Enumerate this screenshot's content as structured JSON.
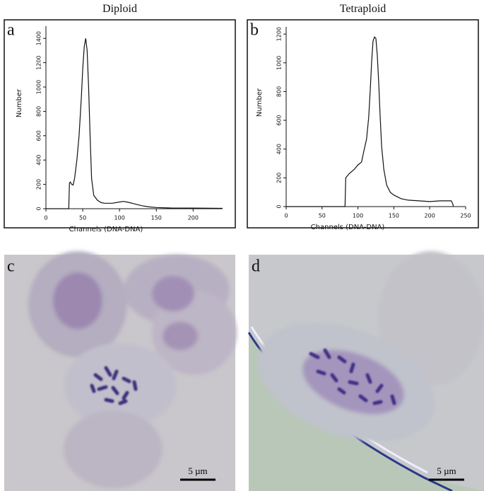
{
  "chart_data": [
    {
      "type": "line",
      "title": "Diploid",
      "panel_label": "a",
      "x_label": "Channels (DNA-DNA)",
      "y_label": "Number",
      "x": [
        0,
        31,
        32,
        33,
        35,
        37,
        39,
        42,
        45,
        48,
        50,
        52,
        54,
        56,
        58,
        60,
        62,
        65,
        70,
        75,
        80,
        90,
        100,
        105,
        110,
        120,
        130,
        140,
        150,
        170,
        200,
        240
      ],
      "values": [
        0,
        0,
        210,
        220,
        200,
        195,
        250,
        400,
        600,
        900,
        1150,
        1330,
        1400,
        1300,
        1000,
        600,
        250,
        110,
        70,
        50,
        45,
        45,
        55,
        60,
        55,
        40,
        25,
        15,
        10,
        6,
        5,
        3
      ],
      "color": "#111111",
      "xlim": [
        0,
        240
      ],
      "ylim": [
        0,
        1500
      ],
      "xticks": [
        0,
        50,
        100,
        150,
        200
      ],
      "yticks": [
        0,
        200,
        400,
        600,
        800,
        1000,
        1200,
        1400
      ]
    },
    {
      "type": "line",
      "title": "Tetraploid",
      "panel_label": "b",
      "x_label": "Channels (DNA-DNA)",
      "y_label": "Number",
      "x": [
        0,
        82,
        83,
        88,
        95,
        100,
        105,
        108,
        112,
        115,
        117,
        119,
        121,
        123,
        125,
        127,
        129,
        131,
        133,
        136,
        140,
        145,
        150,
        160,
        170,
        185,
        200,
        215,
        230,
        232,
        233
      ],
      "values": [
        0,
        0,
        200,
        230,
        260,
        290,
        310,
        380,
        470,
        620,
        800,
        1000,
        1150,
        1180,
        1170,
        1050,
        850,
        620,
        420,
        260,
        150,
        100,
        80,
        55,
        45,
        40,
        35,
        40,
        40,
        20,
        0
      ],
      "color": "#111111",
      "xlim": [
        0,
        250
      ],
      "ylim": [
        0,
        1250
      ],
      "xticks": [
        0,
        50,
        100,
        150,
        200,
        250
      ],
      "yticks": [
        0,
        200,
        400,
        600,
        800,
        1000,
        1200
      ]
    }
  ],
  "images": [
    {
      "panel_label": "c",
      "scale_bar": "5 µm"
    },
    {
      "panel_label": "d",
      "scale_bar": "5 µm"
    }
  ]
}
